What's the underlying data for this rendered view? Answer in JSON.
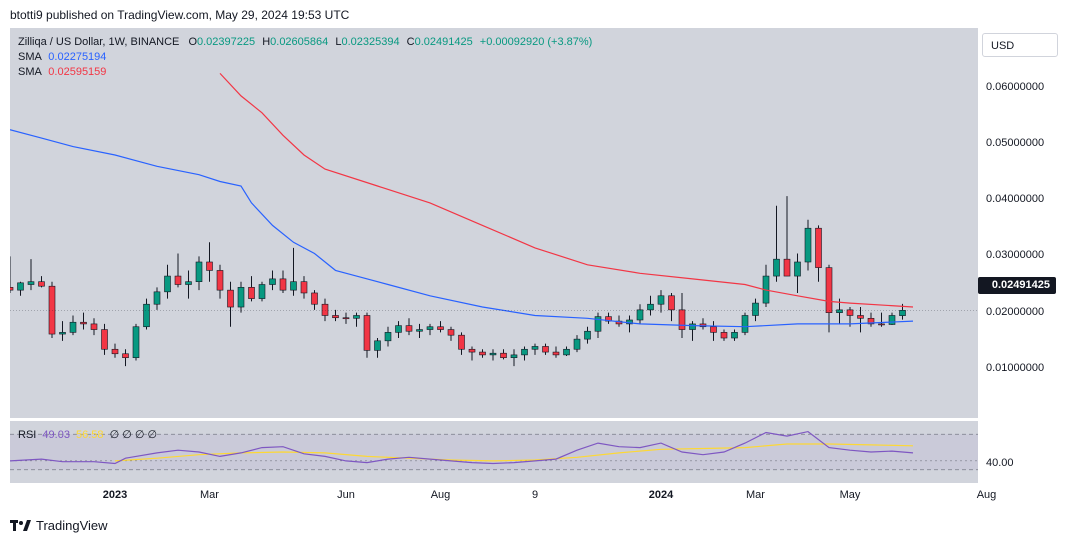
{
  "header": {
    "publisher": "btotti9 published on TradingView.com, May 29, 2024 19:53 UTC"
  },
  "legend": {
    "symbol": "Zilliqa / US Dollar, 1W, BINANCE",
    "open_label": "O",
    "open": "0.02397225",
    "high_label": "H",
    "high": "0.02605864",
    "low_label": "L",
    "low": "0.02325394",
    "close_label": "C",
    "close": "0.02491425",
    "change": "+0.00092920 (+3.87%)",
    "sma1_label": "SMA",
    "sma1_value": "0.02275194",
    "sma2_label": "SMA",
    "sma2_value": "0.02595159"
  },
  "rsi": {
    "label": "RSI",
    "value": "49.03",
    "ma_value": "56.58",
    "extras": "∅ ∅ ∅ ∅"
  },
  "price_scale": {
    "currency": "USD",
    "last_price": "0.02491425",
    "labels": [
      "0.06000000",
      "0.05000000",
      "0.04000000",
      "0.03000000",
      "0.02000000",
      "0.01000000"
    ],
    "rsi_label": "40.00"
  },
  "footer": {
    "brand": "TradingView"
  },
  "colors": {
    "up": "#089981",
    "down": "#f23645",
    "sma_fast": "#2962ff",
    "sma_slow": "#f23645",
    "rsi": "#7e57c2",
    "rsi_ma": "#fdd835",
    "pane": "#d1d4dc"
  },
  "chart_data": {
    "type": "candlestick",
    "title": "Zilliqa / US Dollar, 1W, BINANCE",
    "xlabel": "",
    "ylabel": "",
    "ylim": [
      0.0,
      0.067
    ],
    "grid": false,
    "x_ticks": [
      {
        "label": "2023",
        "index": 10,
        "bold": true
      },
      {
        "label": "Mar",
        "index": 19,
        "bold": false
      },
      {
        "label": "Jun",
        "index": 32,
        "bold": false
      },
      {
        "label": "Aug",
        "index": 41,
        "bold": false
      },
      {
        "label": "9",
        "index": 50,
        "bold": false
      },
      {
        "label": "2024",
        "index": 62,
        "bold": true
      },
      {
        "label": "Mar",
        "index": 71,
        "bold": false
      },
      {
        "label": "May",
        "index": 80,
        "bold": false
      },
      {
        "label": "Aug",
        "index": 93,
        "bold": false
      }
    ],
    "ohlc": [
      [
        0.029,
        0.0345,
        0.028,
        0.0285
      ],
      [
        0.0285,
        0.03,
        0.0275,
        0.0298
      ],
      [
        0.0295,
        0.034,
        0.0285,
        0.03
      ],
      [
        0.03,
        0.031,
        0.029,
        0.0292
      ],
      [
        0.0292,
        0.03,
        0.02,
        0.0207
      ],
      [
        0.0207,
        0.023,
        0.0195,
        0.021
      ],
      [
        0.021,
        0.024,
        0.0205,
        0.0228
      ],
      [
        0.0228,
        0.0245,
        0.0215,
        0.0225
      ],
      [
        0.0225,
        0.0235,
        0.0205,
        0.0215
      ],
      [
        0.0215,
        0.0225,
        0.017,
        0.018
      ],
      [
        0.018,
        0.019,
        0.0165,
        0.0172
      ],
      [
        0.0172,
        0.018,
        0.015,
        0.0165
      ],
      [
        0.0165,
        0.0225,
        0.016,
        0.022
      ],
      [
        0.022,
        0.027,
        0.0215,
        0.026
      ],
      [
        0.026,
        0.029,
        0.025,
        0.0282
      ],
      [
        0.0282,
        0.033,
        0.027,
        0.031
      ],
      [
        0.031,
        0.035,
        0.029,
        0.0295
      ],
      [
        0.0295,
        0.032,
        0.027,
        0.03
      ],
      [
        0.03,
        0.0345,
        0.0285,
        0.0335
      ],
      [
        0.0335,
        0.037,
        0.03,
        0.032
      ],
      [
        0.032,
        0.033,
        0.027,
        0.0285
      ],
      [
        0.0285,
        0.03,
        0.022,
        0.0255
      ],
      [
        0.0255,
        0.03,
        0.0245,
        0.029
      ],
      [
        0.029,
        0.031,
        0.0265,
        0.027
      ],
      [
        0.027,
        0.03,
        0.0265,
        0.0295
      ],
      [
        0.0295,
        0.032,
        0.0285,
        0.0305
      ],
      [
        0.0305,
        0.032,
        0.028,
        0.0285
      ],
      [
        0.0285,
        0.036,
        0.0275,
        0.03
      ],
      [
        0.03,
        0.031,
        0.027,
        0.028
      ],
      [
        0.028,
        0.0285,
        0.025,
        0.026
      ],
      [
        0.026,
        0.027,
        0.023,
        0.024
      ],
      [
        0.024,
        0.025,
        0.023,
        0.0236
      ],
      [
        0.0236,
        0.0245,
        0.0225,
        0.0235
      ],
      [
        0.0235,
        0.0245,
        0.022,
        0.024
      ],
      [
        0.024,
        0.0245,
        0.0165,
        0.0178
      ],
      [
        0.0178,
        0.02,
        0.0165,
        0.0195
      ],
      [
        0.0195,
        0.022,
        0.0185,
        0.021
      ],
      [
        0.021,
        0.023,
        0.02,
        0.0222
      ],
      [
        0.0222,
        0.0235,
        0.0205,
        0.0212
      ],
      [
        0.0212,
        0.0225,
        0.02,
        0.0215
      ],
      [
        0.0215,
        0.0225,
        0.0205,
        0.022
      ],
      [
        0.022,
        0.023,
        0.021,
        0.0215
      ],
      [
        0.0215,
        0.022,
        0.0195,
        0.0205
      ],
      [
        0.0205,
        0.021,
        0.017,
        0.018
      ],
      [
        0.018,
        0.0185,
        0.016,
        0.0175
      ],
      [
        0.0175,
        0.018,
        0.0165,
        0.017
      ],
      [
        0.017,
        0.018,
        0.016,
        0.0173
      ],
      [
        0.0173,
        0.018,
        0.0162,
        0.0165
      ],
      [
        0.0165,
        0.018,
        0.015,
        0.017
      ],
      [
        0.017,
        0.0185,
        0.016,
        0.018
      ],
      [
        0.018,
        0.019,
        0.017,
        0.0185
      ],
      [
        0.0185,
        0.019,
        0.017,
        0.0175
      ],
      [
        0.0175,
        0.0185,
        0.0165,
        0.017
      ],
      [
        0.017,
        0.0185,
        0.0168,
        0.018
      ],
      [
        0.018,
        0.0205,
        0.0175,
        0.0198
      ],
      [
        0.0198,
        0.022,
        0.019,
        0.0212
      ],
      [
        0.0212,
        0.0245,
        0.02,
        0.0238
      ],
      [
        0.0238,
        0.0245,
        0.0225,
        0.023
      ],
      [
        0.023,
        0.024,
        0.022,
        0.0225
      ],
      [
        0.0225,
        0.024,
        0.021,
        0.0232
      ],
      [
        0.0232,
        0.026,
        0.0225,
        0.025
      ],
      [
        0.025,
        0.0275,
        0.024,
        0.026
      ],
      [
        0.026,
        0.0285,
        0.0245,
        0.0275
      ],
      [
        0.0275,
        0.028,
        0.023,
        0.025
      ],
      [
        0.025,
        0.028,
        0.02,
        0.0215
      ],
      [
        0.0215,
        0.023,
        0.0195,
        0.0225
      ],
      [
        0.0225,
        0.0235,
        0.0215,
        0.022
      ],
      [
        0.022,
        0.023,
        0.0195,
        0.021
      ],
      [
        0.021,
        0.0215,
        0.0195,
        0.02
      ],
      [
        0.02,
        0.0215,
        0.0195,
        0.021
      ],
      [
        0.021,
        0.0245,
        0.0205,
        0.024
      ],
      [
        0.024,
        0.027,
        0.023,
        0.0262
      ],
      [
        0.0262,
        0.033,
        0.0255,
        0.031
      ],
      [
        0.031,
        0.0435,
        0.03,
        0.034
      ],
      [
        0.034,
        0.0452,
        0.031,
        0.031
      ],
      [
        0.031,
        0.035,
        0.028,
        0.0335
      ],
      [
        0.0335,
        0.041,
        0.032,
        0.0395
      ],
      [
        0.0395,
        0.04,
        0.03,
        0.0325
      ],
      [
        0.0325,
        0.033,
        0.021,
        0.0245
      ],
      [
        0.0245,
        0.027,
        0.0225,
        0.025
      ],
      [
        0.025,
        0.0255,
        0.022,
        0.024
      ],
      [
        0.024,
        0.0255,
        0.021,
        0.0235
      ],
      [
        0.0235,
        0.0245,
        0.022,
        0.0225
      ],
      [
        0.0225,
        0.0245,
        0.022,
        0.0224
      ],
      [
        0.0224,
        0.0245,
        0.0223,
        0.024
      ],
      [
        0.02397225,
        0.02605864,
        0.02325394,
        0.02491425
      ]
    ],
    "sma_fast": [
      [
        0,
        0.057
      ],
      [
        3,
        0.0555
      ],
      [
        6,
        0.054
      ],
      [
        10,
        0.0525
      ],
      [
        14,
        0.0505
      ],
      [
        18,
        0.049
      ],
      [
        20,
        0.0478
      ],
      [
        22,
        0.047
      ],
      [
        23,
        0.044
      ],
      [
        25,
        0.04
      ],
      [
        27,
        0.037
      ],
      [
        29,
        0.035
      ],
      [
        31,
        0.032
      ],
      [
        33,
        0.031
      ],
      [
        36,
        0.0295
      ],
      [
        40,
        0.0275
      ],
      [
        45,
        0.0255
      ],
      [
        50,
        0.024
      ],
      [
        55,
        0.0235
      ],
      [
        60,
        0.0225
      ],
      [
        65,
        0.0222
      ],
      [
        70,
        0.022
      ],
      [
        75,
        0.0225
      ],
      [
        80,
        0.0225
      ],
      [
        86,
        0.023
      ]
    ],
    "sma_slow": [
      [
        20,
        0.067
      ],
      [
        22,
        0.063
      ],
      [
        24,
        0.06
      ],
      [
        26,
        0.056
      ],
      [
        28,
        0.0525
      ],
      [
        30,
        0.05
      ],
      [
        35,
        0.047
      ],
      [
        40,
        0.044
      ],
      [
        45,
        0.04
      ],
      [
        50,
        0.036
      ],
      [
        55,
        0.033
      ],
      [
        60,
        0.0315
      ],
      [
        65,
        0.0305
      ],
      [
        70,
        0.0295
      ],
      [
        72,
        0.0285
      ],
      [
        75,
        0.0275
      ],
      [
        78,
        0.0265
      ],
      [
        80,
        0.0262
      ],
      [
        86,
        0.0255
      ]
    ],
    "rsi": {
      "ylim": [
        15,
        85
      ],
      "bands": [
        30,
        70
      ],
      "level": 40,
      "rsi_line": [
        [
          0,
          40
        ],
        [
          3,
          42
        ],
        [
          5,
          39
        ],
        [
          8,
          39
        ],
        [
          10,
          37
        ],
        [
          11,
          43
        ],
        [
          14,
          49
        ],
        [
          16,
          52
        ],
        [
          18,
          50
        ],
        [
          20,
          45
        ],
        [
          22,
          49
        ],
        [
          24,
          55
        ],
        [
          26,
          56
        ],
        [
          28,
          48
        ],
        [
          30,
          45
        ],
        [
          32,
          40
        ],
        [
          34,
          38
        ],
        [
          36,
          42
        ],
        [
          38,
          44
        ],
        [
          40,
          42
        ],
        [
          42,
          40
        ],
        [
          44,
          38
        ],
        [
          46,
          37
        ],
        [
          48,
          38
        ],
        [
          50,
          40
        ],
        [
          52,
          42
        ],
        [
          54,
          52
        ],
        [
          56,
          60
        ],
        [
          58,
          56
        ],
        [
          60,
          55
        ],
        [
          62,
          60
        ],
        [
          64,
          50
        ],
        [
          66,
          47
        ],
        [
          68,
          50
        ],
        [
          70,
          60
        ],
        [
          72,
          72
        ],
        [
          74,
          68
        ],
        [
          76,
          73
        ],
        [
          78,
          55
        ],
        [
          80,
          52
        ],
        [
          82,
          50
        ],
        [
          84,
          51
        ],
        [
          86,
          49
        ]
      ],
      "ma_line": [
        [
          10,
          40
        ],
        [
          14,
          43
        ],
        [
          18,
          47
        ],
        [
          22,
          49
        ],
        [
          26,
          50
        ],
        [
          30,
          49
        ],
        [
          34,
          45
        ],
        [
          38,
          43
        ],
        [
          42,
          41
        ],
        [
          46,
          40
        ],
        [
          50,
          41
        ],
        [
          54,
          44
        ],
        [
          58,
          49
        ],
        [
          62,
          53
        ],
        [
          66,
          54
        ],
        [
          70,
          55
        ],
        [
          74,
          59
        ],
        [
          78,
          59
        ],
        [
          82,
          58
        ],
        [
          86,
          57
        ]
      ]
    }
  }
}
